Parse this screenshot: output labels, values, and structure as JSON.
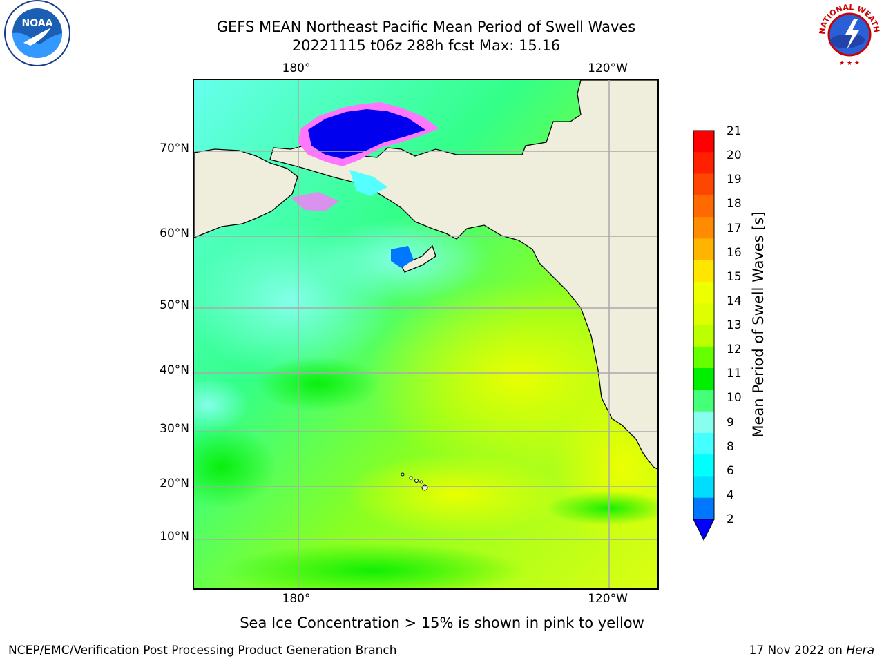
{
  "title": {
    "line1": "GEFS MEAN Northeast Pacific Mean Period of Swell Waves",
    "line2": "20221115 t06z 288h fcst   Max: 15.16"
  },
  "logos": {
    "left": "noa-logo",
    "right": "nws-logo",
    "left_text": "NOAA",
    "right_text": "NATIONAL WEATHER SERVICE"
  },
  "map": {
    "top_ticks": [
      "180°",
      "120°W"
    ],
    "bottom_ticks": [
      "180°",
      "120°W"
    ],
    "lat_ticks": [
      "70°N",
      "60°N",
      "50°N",
      "40°N",
      "30°N",
      "20°N",
      "10°N"
    ],
    "land_color": "#efeddc",
    "ocean_colors": {
      "light": "#55ffee",
      "green": "#33ff77",
      "bright_green": "#00ee00",
      "yellow_green": "#ccff00",
      "yellow": "#eeff11"
    },
    "ice_colors": {
      "deep_blue": "#0000ee",
      "blue": "#0077ff",
      "pink": "#ff33ff",
      "orange": "#ffaa44"
    }
  },
  "colorbar": {
    "label": "Mean Period of Swell Waves [s]",
    "ticks": [
      "21",
      "20",
      "19",
      "18",
      "17",
      "16",
      "15",
      "14",
      "13",
      "12",
      "11",
      "10",
      "9",
      "8",
      "6",
      "4",
      "2"
    ],
    "colors": [
      "#ff0000",
      "#ff2000",
      "#ff4600",
      "#ff6a00",
      "#ff8c00",
      "#ffb400",
      "#ffe600",
      "#eeff00",
      "#ddff00",
      "#bbff00",
      "#66ff00",
      "#00ee00",
      "#44ff77",
      "#88ffee",
      "#44ffff",
      "#00ffff",
      "#00ddff",
      "#0077ff"
    ],
    "extend_color": "#0000ff"
  },
  "note": "Sea Ice Concentration > 15% is shown in pink to yellow",
  "footer": {
    "left": "NCEP/EMC/Verification Post Processing Product Generation Branch",
    "right_date": "17 Nov 2022 on ",
    "right_host": "Hera"
  }
}
